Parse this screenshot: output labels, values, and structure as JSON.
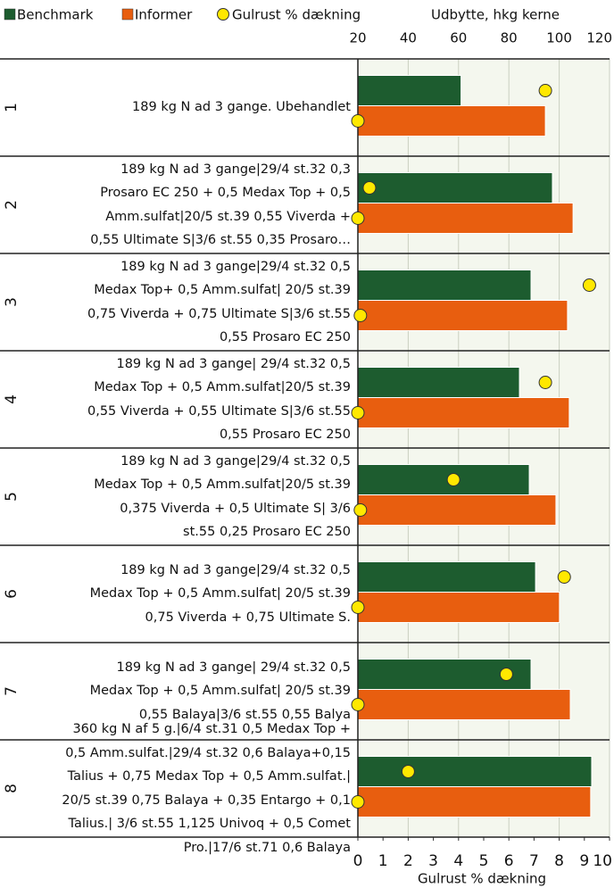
{
  "chart_data": {
    "type": "bar",
    "categories": [
      "1",
      "2",
      "3",
      "4",
      "5",
      "6",
      "7",
      "8"
    ],
    "descriptions": [
      "189 kg N ad 3 gange. Ubehandlet",
      "189 kg N ad 3 gange|29/4 st.32 0,3\nProsaro EC 250 + 0,5 Medax Top + 0,5\nAmm.sulfat|20/5 st.39 0,55 Viverda +\n0,55 Ultimate S|3/6 st.55 0,35 Prosaro…",
      "189 kg N ad 3 gange|29/4 st.32 0,5\nMedax Top+ 0,5 Amm.sulfat| 20/5 st.39\n0,75 Viverda + 0,75 Ultimate S|3/6 st.55\n0,55 Prosaro EC 250",
      "189 kg N ad 3 gange| 29/4 st.32 0,5\nMedax Top + 0,5 Amm.sulfat|20/5 st.39\n0,55 Viverda + 0,55 Ultimate S|3/6 st.55\n0,55 Prosaro EC 250",
      "189 kg N ad 3 gange|29/4 st.32 0,5\nMedax Top + 0,5 Amm.sulfat|20/5 st.39\n0,375 Viverda + 0,5 Ultimate S| 3/6\nst.55 0,25 Prosaro EC 250",
      "189 kg N ad 3 gange|29/4 st.32 0,5\nMedax Top + 0,5 Amm.sulfat| 20/5 st.39\n0,75 Viverda + 0,75 Ultimate S.",
      "189 kg N ad 3 gange| 29/4 st.32 0,5\nMedax Top + 0,5 Amm.sulfat| 20/5 st.39\n0,55 Balaya|3/6 st.55 0,55 Balya",
      "360 kg N af 5 g.|6/4 st.31 0,5 Medax Top +\n0,5 Amm.sulfat.|29/4 st.32 0,6  Balaya+0,15\nTalius + 0,75 Medax Top + 0,5 Amm.sulfat.|\n20/5 st.39 0,75 Balaya + 0,35 Entargo + 0,1\nTalius.| 3/6 st.55 1,125 Univoq + 0,5 Comet\nPro.|17/6 st.71 0,6 Balaya"
    ],
    "series": [
      {
        "name": "Benchmark",
        "color": "#1d5c2f",
        "values": [
          61,
          97.3,
          88.8,
          84.2,
          88.1,
          90.6,
          88.8,
          112.9
        ],
        "gulrust": [
          7.45,
          0.46,
          9.2,
          7.45,
          3.8,
          8.2,
          5.9,
          2.0
        ]
      },
      {
        "name": "Informer",
        "color": "#e85e0f",
        "values": [
          94.5,
          105.5,
          103.3,
          104,
          98.7,
          100.1,
          104.4,
          112.5
        ],
        "gulrust": [
          0,
          0,
          0.1,
          0,
          0.1,
          0,
          0,
          0
        ]
      }
    ],
    "points_name": "Gulrust % dækning",
    "points_color": "#ffe800",
    "xlabel": "Udbytte, hkg kerne",
    "xlim": [
      20,
      120
    ],
    "xticks": [
      20,
      40,
      60,
      80,
      100,
      120
    ],
    "x2label": "Gulrust % dækning",
    "x2lim": [
      0,
      10
    ],
    "x2ticks": [
      0,
      1,
      2,
      3,
      4,
      5,
      6,
      7,
      8,
      9,
      10
    ],
    "grid": true
  }
}
